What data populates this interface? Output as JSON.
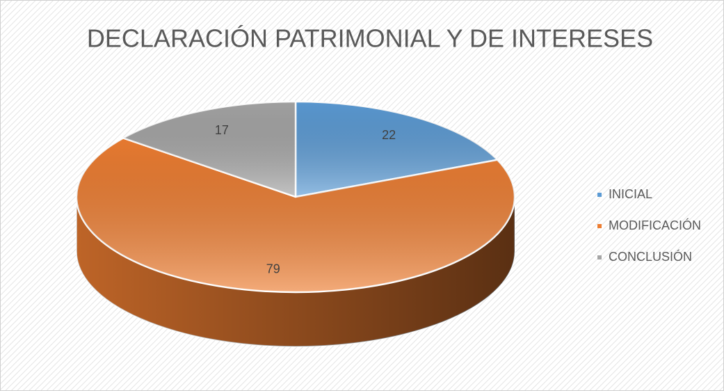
{
  "chart_data": {
    "type": "pie3d",
    "title": "DECLARACIÓN PATRIMONIAL Y DE INTERESES",
    "categories": [
      "INICIAL",
      "MODIFICACIÓN",
      "CONCLUSIÓN"
    ],
    "values": [
      22,
      79,
      17
    ],
    "colors": [
      "#5b9bd5",
      "#ed7d31",
      "#a5a5a5"
    ],
    "legend": "right"
  }
}
